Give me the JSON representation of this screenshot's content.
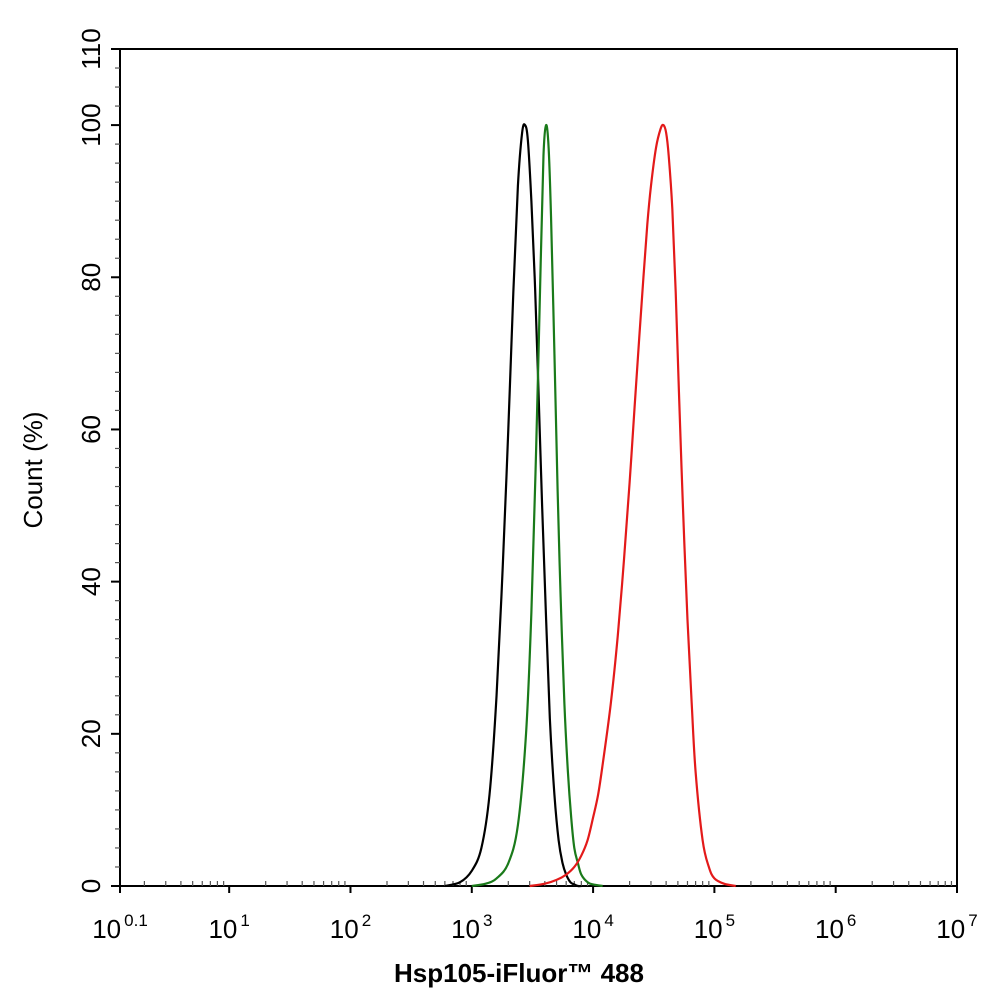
{
  "chart_data": {
    "type": "line",
    "title": "",
    "xlabel": "Hsp105-iFluor™ 488",
    "ylabel": "Count  (%)",
    "x_scale": "log",
    "xlim": [
      1.2589,
      10000000
    ],
    "ylim": [
      0,
      110
    ],
    "x_ticks": [
      {
        "value": 1.2589,
        "base": "10",
        "exp": "0.1"
      },
      {
        "value": 10,
        "base": "10",
        "exp": "1"
      },
      {
        "value": 100,
        "base": "10",
        "exp": "2"
      },
      {
        "value": 1000,
        "base": "10",
        "exp": "3"
      },
      {
        "value": 10000,
        "base": "10",
        "exp": "4"
      },
      {
        "value": 100000,
        "base": "10",
        "exp": "5"
      },
      {
        "value": 1000000,
        "base": "10",
        "exp": "6"
      },
      {
        "value": 10000000,
        "base": "10",
        "exp": "7"
      }
    ],
    "y_ticks": [
      0,
      20,
      40,
      60,
      80,
      100,
      110
    ],
    "grid": false,
    "legend": "none",
    "series": [
      {
        "color": "#000000",
        "x": [
          600,
          800,
          1000,
          1200,
          1400,
          1600,
          1800,
          2000,
          2200,
          2400,
          2600,
          2750,
          2900,
          3100,
          3300,
          3500,
          3800,
          4100,
          4400,
          4800,
          5200,
          5600,
          6000,
          6500,
          7000,
          7500,
          8000
        ],
        "y": [
          0,
          0.5,
          2,
          5,
          12,
          25,
          42,
          60,
          78,
          92,
          99,
          100,
          98,
          90,
          80,
          68,
          50,
          35,
          22,
          12,
          6,
          3,
          1.5,
          0.5,
          0.2,
          0,
          0
        ]
      },
      {
        "color": "#1a7a1a",
        "x": [
          1000,
          1300,
          1600,
          2000,
          2400,
          2800,
          3100,
          3400,
          3700,
          3900,
          4100,
          4300,
          4500,
          4800,
          5100,
          5400,
          5800,
          6200,
          6600,
          7000,
          7500,
          8000,
          9000,
          10000,
          12000
        ],
        "y": [
          0,
          0.3,
          1,
          3,
          8,
          20,
          36,
          58,
          82,
          96,
          100,
          97,
          88,
          70,
          52,
          38,
          24,
          15,
          9,
          5,
          3,
          1.5,
          0.5,
          0.2,
          0
        ]
      },
      {
        "color": "#e31a1a",
        "x": [
          3000,
          4000,
          5000,
          6000,
          7000,
          8000,
          9000,
          10000,
          11000,
          12000,
          14000,
          16000,
          18000,
          20000,
          22000,
          24000,
          26000,
          28000,
          30000,
          33000,
          36000,
          38000,
          40000,
          42000,
          45000,
          48000,
          51000,
          55000,
          60000,
          65000,
          70000,
          80000,
          90000,
          100000,
          120000,
          150000
        ],
        "y": [
          0,
          0.3,
          0.8,
          1.5,
          2.5,
          4,
          6,
          9,
          12,
          16,
          24,
          33,
          43,
          53,
          63,
          72,
          80,
          87,
          92,
          97,
          99.5,
          100,
          99,
          96,
          89,
          78,
          65,
          50,
          35,
          24,
          15,
          6,
          2.5,
          1,
          0.3,
          0
        ]
      }
    ]
  }
}
